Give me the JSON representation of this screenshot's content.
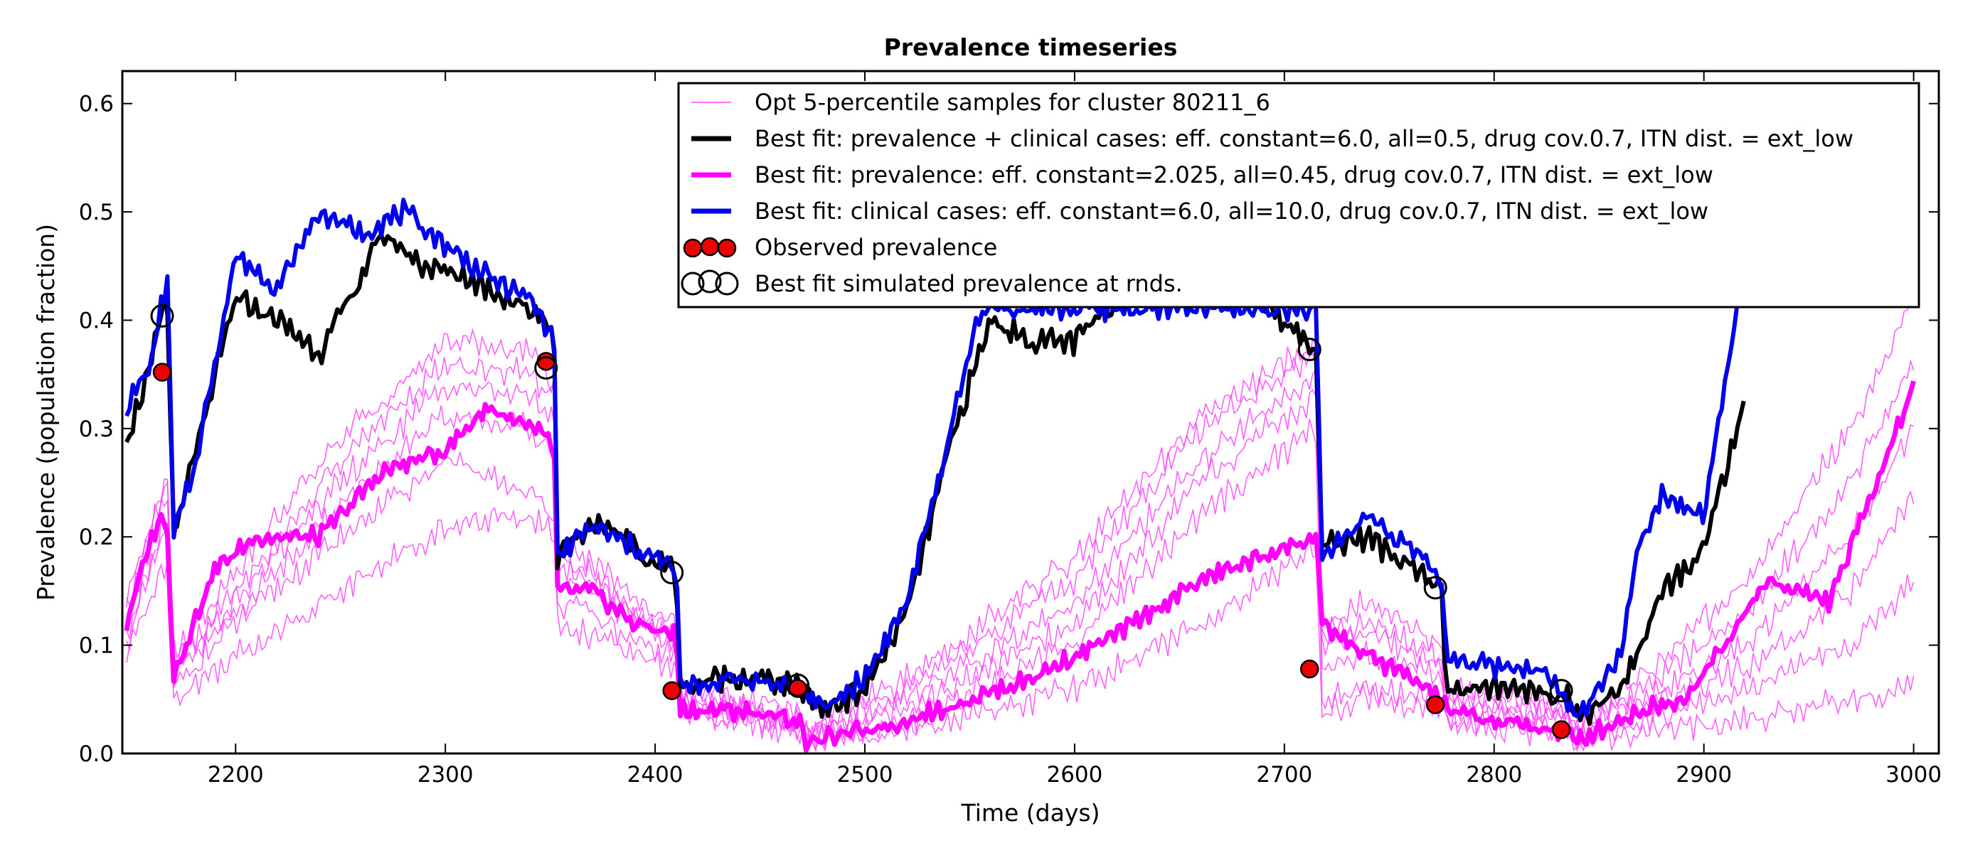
{
  "chart_data": {
    "type": "line",
    "title": "Prevalence timeseries",
    "xlabel": "Time (days)",
    "ylabel": "Prevalence (population fraction)",
    "xlim": [
      2146,
      3012
    ],
    "ylim": [
      0,
      0.63
    ],
    "xticks": [
      2200,
      2300,
      2400,
      2500,
      2600,
      2700,
      2800,
      2900,
      3000
    ],
    "yticks": [
      0.0,
      0.1,
      0.2,
      0.3,
      0.4,
      0.5,
      0.6
    ],
    "grid": false,
    "legend_position": "top-right",
    "colors": {
      "samples": "#ff44ff",
      "best_combined": "#000000",
      "best_prevalence": "#ff00ff",
      "best_clinical": "#0000ee",
      "observed": "#ee0000"
    },
    "series": [
      {
        "key": "samples",
        "name": "Opt 5-percentile samples for cluster 80211_6",
        "x": [
          2148,
          2165,
          2168,
          2170,
          2200,
          2250,
          2300,
          2340,
          2352,
          2353,
          2370,
          2390,
          2410,
          2412,
          2440,
          2468,
          2472,
          2520,
          2600,
          2660,
          2700,
          2716,
          2717,
          2740,
          2775,
          2777,
          2810,
          2835,
          2838,
          2870,
          2920,
          2970,
          3000
        ],
        "curves": [
          [
            0.1,
            0.2,
            0.21,
            0.06,
            0.12,
            0.2,
            0.27,
            0.24,
            0.22,
            0.14,
            0.13,
            0.1,
            0.09,
            0.04,
            0.03,
            0.02,
            0.01,
            0.03,
            0.1,
            0.22,
            0.28,
            0.3,
            0.05,
            0.06,
            0.05,
            0.03,
            0.03,
            0.02,
            0.01,
            0.03,
            0.06,
            0.1,
            0.16
          ],
          [
            0.12,
            0.23,
            0.24,
            0.08,
            0.14,
            0.25,
            0.34,
            0.33,
            0.31,
            0.17,
            0.16,
            0.13,
            0.11,
            0.05,
            0.04,
            0.03,
            0.02,
            0.05,
            0.14,
            0.27,
            0.33,
            0.35,
            0.1,
            0.11,
            0.08,
            0.05,
            0.04,
            0.03,
            0.02,
            0.05,
            0.1,
            0.2,
            0.3
          ],
          [
            0.14,
            0.25,
            0.26,
            0.09,
            0.17,
            0.29,
            0.38,
            0.37,
            0.34,
            0.19,
            0.18,
            0.14,
            0.12,
            0.06,
            0.05,
            0.04,
            0.02,
            0.07,
            0.18,
            0.31,
            0.36,
            0.38,
            0.12,
            0.14,
            0.1,
            0.06,
            0.05,
            0.04,
            0.02,
            0.07,
            0.16,
            0.3,
            0.42
          ],
          [
            0.09,
            0.17,
            0.18,
            0.05,
            0.09,
            0.15,
            0.21,
            0.22,
            0.2,
            0.12,
            0.11,
            0.09,
            0.08,
            0.04,
            0.03,
            0.02,
            0.01,
            0.02,
            0.06,
            0.12,
            0.17,
            0.19,
            0.04,
            0.05,
            0.04,
            0.03,
            0.02,
            0.02,
            0.01,
            0.02,
            0.03,
            0.05,
            0.06
          ],
          [
            0.11,
            0.21,
            0.22,
            0.07,
            0.13,
            0.23,
            0.31,
            0.3,
            0.28,
            0.16,
            0.15,
            0.12,
            0.1,
            0.05,
            0.04,
            0.03,
            0.02,
            0.04,
            0.12,
            0.25,
            0.31,
            0.33,
            0.08,
            0.09,
            0.07,
            0.04,
            0.04,
            0.03,
            0.02,
            0.04,
            0.08,
            0.15,
            0.24
          ],
          [
            0.13,
            0.24,
            0.25,
            0.08,
            0.15,
            0.27,
            0.36,
            0.35,
            0.33,
            0.18,
            0.17,
            0.13,
            0.11,
            0.06,
            0.04,
            0.03,
            0.02,
            0.06,
            0.16,
            0.3,
            0.35,
            0.37,
            0.11,
            0.12,
            0.09,
            0.05,
            0.05,
            0.04,
            0.02,
            0.06,
            0.13,
            0.25,
            0.36
          ]
        ]
      },
      {
        "key": "best_combined",
        "name": "Best fit: prevalence + clinical cases: eff. constant=6.0, all=0.5, drug cov.0.7, ITN dist. = ext_low",
        "x": [
          2148,
          2160,
          2165,
          2168,
          2170,
          2180,
          2200,
          2220,
          2240,
          2260,
          2270,
          2290,
          2310,
          2330,
          2340,
          2350,
          2352,
          2353,
          2360,
          2380,
          2395,
          2410,
          2412,
          2413,
          2430,
          2450,
          2470,
          2480,
          2500,
          2520,
          2540,
          2560,
          2580,
          2600,
          2620,
          2640,
          2660,
          2680,
          2700,
          2716,
          2717,
          2740,
          2760,
          2775,
          2777,
          2800,
          2820,
          2835,
          2838,
          2860,
          2870,
          2880,
          2900,
          2920
        ],
        "y": [
          0.29,
          0.36,
          0.41,
          0.41,
          0.2,
          0.27,
          0.42,
          0.4,
          0.37,
          0.44,
          0.48,
          0.45,
          0.44,
          0.42,
          0.41,
          0.4,
          0.36,
          0.18,
          0.2,
          0.21,
          0.18,
          0.17,
          0.06,
          0.06,
          0.07,
          0.07,
          0.06,
          0.04,
          0.06,
          0.13,
          0.28,
          0.4,
          0.38,
          0.38,
          0.42,
          0.44,
          0.46,
          0.44,
          0.4,
          0.37,
          0.19,
          0.2,
          0.17,
          0.15,
          0.06,
          0.06,
          0.06,
          0.05,
          0.03,
          0.06,
          0.1,
          0.15,
          0.19,
          0.33
        ]
      },
      {
        "key": "best_prevalence",
        "name": "Best fit: prevalence: eff. constant=2.025, all=0.45, drug cov.0.7, ITN dist. = ext_low",
        "x": [
          2148,
          2160,
          2165,
          2168,
          2170,
          2190,
          2210,
          2240,
          2270,
          2300,
          2320,
          2340,
          2350,
          2352,
          2353,
          2370,
          2390,
          2410,
          2412,
          2440,
          2470,
          2472,
          2520,
          2580,
          2620,
          2660,
          2700,
          2716,
          2717,
          2740,
          2760,
          2775,
          2777,
          2800,
          2835,
          2838,
          2870,
          2890,
          2910,
          2930,
          2960,
          3000
        ],
        "y": [
          0.12,
          0.2,
          0.22,
          0.2,
          0.07,
          0.17,
          0.2,
          0.2,
          0.26,
          0.28,
          0.32,
          0.3,
          0.29,
          0.27,
          0.15,
          0.15,
          0.12,
          0.11,
          0.04,
          0.04,
          0.03,
          0.01,
          0.03,
          0.07,
          0.11,
          0.16,
          0.19,
          0.2,
          0.12,
          0.09,
          0.07,
          0.05,
          0.04,
          0.03,
          0.02,
          0.01,
          0.04,
          0.05,
          0.1,
          0.16,
          0.14,
          0.34
        ]
      },
      {
        "key": "best_clinical",
        "name": "Best fit: clinical cases: eff. constant=6.0, all=10.0, drug cov.0.7, ITN dist. = ext_low",
        "x": [
          2148,
          2160,
          2165,
          2168,
          2170,
          2180,
          2200,
          2220,
          2240,
          2260,
          2280,
          2300,
          2320,
          2340,
          2350,
          2352,
          2353,
          2370,
          2390,
          2410,
          2412,
          2413,
          2440,
          2470,
          2480,
          2500,
          2520,
          2540,
          2555,
          2716,
          2717,
          2740,
          2760,
          2775,
          2777,
          2800,
          2820,
          2835,
          2838,
          2860,
          2870,
          2880,
          2900,
          2920
        ],
        "y": [
          0.32,
          0.36,
          0.42,
          0.44,
          0.2,
          0.26,
          0.46,
          0.43,
          0.5,
          0.48,
          0.5,
          0.47,
          0.44,
          0.42,
          0.39,
          0.38,
          0.18,
          0.21,
          0.19,
          0.17,
          0.07,
          0.06,
          0.07,
          0.06,
          0.04,
          0.07,
          0.14,
          0.29,
          0.41,
          0.41,
          0.18,
          0.22,
          0.19,
          0.16,
          0.09,
          0.08,
          0.08,
          0.05,
          0.03,
          0.09,
          0.2,
          0.24,
          0.22,
          0.46
        ]
      }
    ],
    "observed_prevalence": {
      "name": "Observed prevalence",
      "x": [
        2165,
        2348,
        2408,
        2468,
        2712,
        2772,
        2832
      ],
      "y": [
        0.352,
        0.362,
        0.058,
        0.06,
        0.078,
        0.045,
        0.022
      ]
    },
    "simulated_at_rounds": {
      "name": "Best fit simulated prevalence at rnds.",
      "x": [
        2165,
        2348,
        2408,
        2468,
        2712,
        2772,
        2832
      ],
      "y": [
        0.404,
        0.356,
        0.167,
        0.063,
        0.373,
        0.153,
        0.058
      ]
    }
  }
}
